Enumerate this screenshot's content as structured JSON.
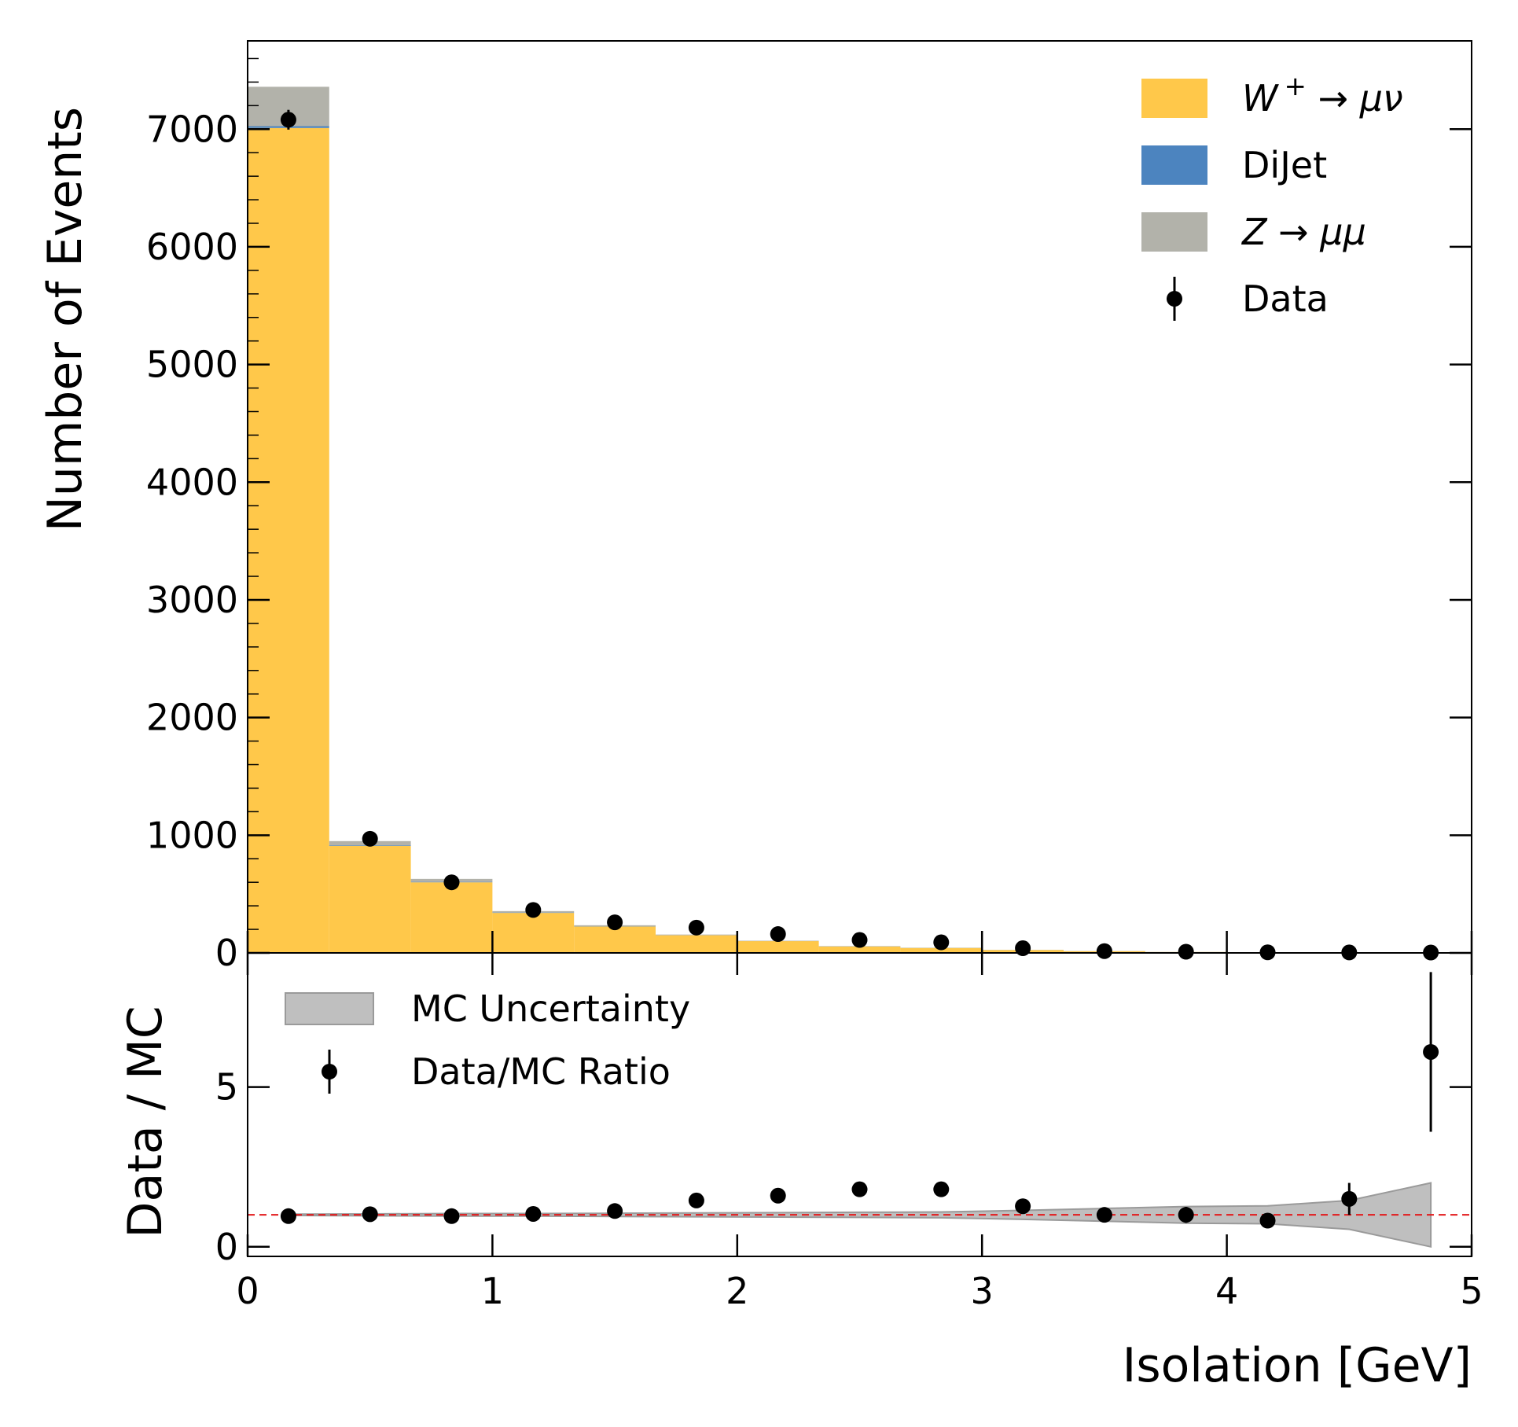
{
  "chart_data": [
    {
      "type": "bar",
      "subtype": "stacked-histogram",
      "xlabel": "",
      "ylabel": "Number of Events",
      "xlim": [
        0,
        5
      ],
      "ylim": [
        0,
        7750
      ],
      "yticks": [
        0,
        1000,
        2000,
        3000,
        4000,
        5000,
        6000,
        7000
      ],
      "ytick_labels": [
        "0",
        "1000",
        "2000",
        "3000",
        "4000",
        "5000",
        "6000",
        "7000"
      ],
      "bin_edges": [
        0,
        0.3333,
        0.6667,
        1.0,
        1.3333,
        1.6667,
        2.0,
        2.3333,
        2.6667,
        3.0,
        3.3333,
        3.6667,
        4.0,
        4.3333,
        4.6667,
        5.0
      ],
      "stack_order": [
        "W+ -> mu nu",
        "DiJet",
        "Z -> mu mu"
      ],
      "series": [
        {
          "name": "W+ -> mu nu",
          "color": "#FFC84A",
          "values": [
            7010,
            910,
            600,
            340,
            225,
            150,
            100,
            55,
            42,
            25,
            15,
            8,
            4,
            2,
            0.5
          ]
        },
        {
          "name": "DiJet",
          "color": "#4C84BF",
          "values": [
            15,
            5,
            4,
            3,
            2,
            1,
            1,
            1,
            0.5,
            0.5,
            0.3,
            0.2,
            0.1,
            0.1,
            0.1
          ]
        },
        {
          "name": "Z -> mu mu",
          "color": "#B2B2AA",
          "values": [
            335,
            35,
            25,
            12,
            8,
            5,
            3,
            2,
            2,
            1,
            1,
            0.5,
            0.3,
            0.2,
            0.1
          ]
        }
      ],
      "data_points": {
        "name": "Data",
        "x": [
          0.1667,
          0.5,
          0.8333,
          1.1667,
          1.5,
          1.8333,
          2.1667,
          2.5,
          2.8333,
          3.1667,
          3.5,
          3.8333,
          4.1667,
          4.5,
          4.8333
        ],
        "y": [
          7080,
          970,
          600,
          365,
          260,
          215,
          160,
          110,
          90,
          40,
          15,
          10,
          5,
          4,
          3
        ],
        "yerr": [
          84,
          31,
          24,
          19,
          16,
          15,
          13,
          10,
          9,
          6,
          4,
          3,
          2,
          2,
          2
        ]
      },
      "legend": {
        "position": "top-right",
        "entries": [
          {
            "series": "W+ -> mu nu",
            "swatch": "#FFC84A",
            "base": "W",
            "sup": "+",
            "rest": " → μν",
            "italic": true
          },
          {
            "series": "DiJet",
            "swatch": "#4C84BF",
            "base": "DiJet",
            "sup": "",
            "rest": "",
            "italic": false
          },
          {
            "series": "Z -> mu mu",
            "swatch": "#B2B2AA",
            "base": "Z → μμ",
            "sup": "",
            "rest": "",
            "italic": true
          },
          {
            "series": "Data",
            "marker": "errorbar",
            "base": "Data",
            "sup": "",
            "rest": "",
            "italic": false
          }
        ]
      }
    },
    {
      "type": "scatter",
      "subtype": "ratio",
      "xlabel": "Isolation [GeV]",
      "ylabel": "Data / MC",
      "xlim": [
        0,
        5
      ],
      "ylim": [
        -0.3,
        9.2
      ],
      "xticks": [
        0,
        1,
        2,
        3,
        4,
        5
      ],
      "xtick_labels": [
        "0",
        "1",
        "2",
        "3",
        "4",
        "5"
      ],
      "yticks": [
        0,
        5
      ],
      "ytick_labels": [
        "0",
        "5"
      ],
      "reference_line": {
        "y": 1,
        "color": "#E31A1C",
        "style": "dashed"
      },
      "ratio": {
        "name": "Data/MC Ratio",
        "x": [
          0.1667,
          0.5,
          0.8333,
          1.1667,
          1.5,
          1.8333,
          2.1667,
          2.5,
          2.8333,
          3.1667,
          3.5,
          3.8333,
          4.1667,
          4.5,
          4.8333
        ],
        "y": [
          0.96,
          1.02,
          0.96,
          1.03,
          1.12,
          1.45,
          1.6,
          1.8,
          1.8,
          1.27,
          1.0,
          1.0,
          0.82,
          1.5,
          6.1
        ],
        "yerr": [
          0.02,
          0.04,
          0.05,
          0.06,
          0.07,
          0.09,
          0.12,
          0.16,
          0.18,
          0.1,
          0.1,
          0.25,
          0.12,
          0.5,
          2.5
        ]
      },
      "uncertainty_band": {
        "name": "MC Uncertainty",
        "color": "#BFBFBF",
        "x": [
          0.1667,
          0.5,
          0.8333,
          1.1667,
          1.5,
          1.8333,
          2.1667,
          2.5,
          2.8333,
          3.1667,
          3.5,
          3.8333,
          4.1667,
          4.5,
          4.8333
        ],
        "low": [
          0.98,
          0.97,
          0.96,
          0.96,
          0.95,
          0.94,
          0.93,
          0.92,
          0.91,
          0.86,
          0.8,
          0.74,
          0.72,
          0.55,
          0.0
        ],
        "high": [
          1.02,
          1.03,
          1.04,
          1.04,
          1.05,
          1.06,
          1.07,
          1.08,
          1.09,
          1.14,
          1.2,
          1.26,
          1.28,
          1.45,
          2.0
        ]
      },
      "legend": {
        "position": "top-left",
        "entries": [
          {
            "series": "MC Uncertainty",
            "swatch": "#BFBFBF",
            "base": "MC Uncertainty"
          },
          {
            "series": "Data/MC Ratio",
            "marker": "errorbar",
            "base": "Data/MC Ratio"
          }
        ]
      }
    }
  ]
}
